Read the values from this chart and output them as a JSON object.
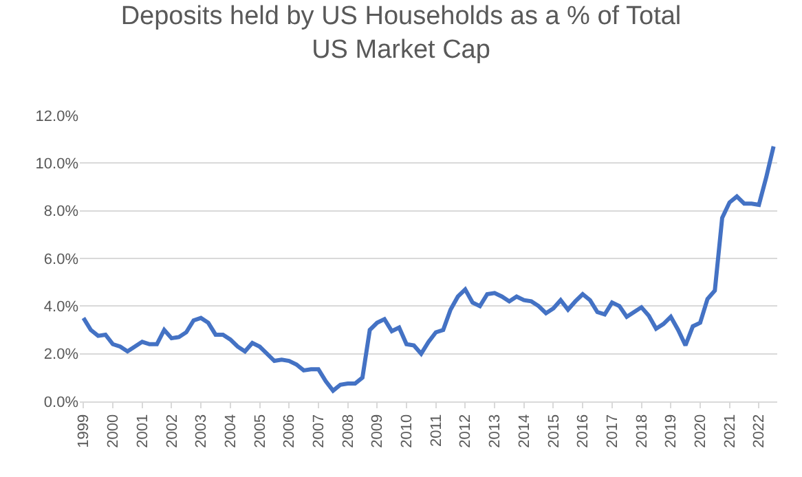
{
  "chart_data": {
    "type": "line",
    "title": "Deposits held by US Households as a % of Total US Market Cap",
    "categories": [
      "1999",
      null,
      null,
      null,
      "2000",
      null,
      null,
      null,
      "2001",
      null,
      null,
      null,
      "2002",
      null,
      null,
      null,
      "2003",
      null,
      null,
      null,
      "2004",
      null,
      null,
      null,
      "2005",
      null,
      null,
      null,
      "2006",
      null,
      null,
      null,
      "2007",
      null,
      null,
      null,
      "2008",
      null,
      null,
      null,
      "2009",
      null,
      null,
      null,
      "2010",
      null,
      null,
      null,
      "2011",
      null,
      null,
      null,
      "2012",
      null,
      null,
      null,
      "2013",
      null,
      null,
      null,
      "2014",
      null,
      null,
      null,
      "2015",
      null,
      null,
      null,
      "2016",
      null,
      null,
      null,
      "2017",
      null,
      null,
      null,
      "2018",
      null,
      null,
      null,
      "2019",
      null,
      null,
      null,
      "2020",
      null,
      null,
      null,
      "2021",
      null,
      null,
      null,
      "2022",
      null,
      null
    ],
    "series": [
      {
        "color": "#4472c4",
        "values": [
          3.5,
          3.0,
          2.75,
          2.8,
          2.4,
          2.3,
          2.1,
          2.3,
          2.5,
          2.4,
          2.4,
          3.0,
          2.65,
          2.7,
          2.9,
          3.4,
          3.5,
          3.3,
          2.8,
          2.8,
          2.6,
          2.3,
          2.1,
          2.45,
          2.3,
          2.0,
          1.7,
          1.75,
          1.7,
          1.55,
          1.3,
          1.35,
          1.35,
          0.85,
          0.45,
          0.7,
          0.75,
          0.75,
          1.0,
          3.0,
          3.3,
          3.45,
          2.95,
          3.1,
          2.4,
          2.35,
          2.0,
          2.5,
          2.9,
          3.0,
          3.85,
          4.4,
          4.7,
          4.15,
          4.0,
          4.5,
          4.55,
          4.4,
          4.2,
          4.4,
          4.25,
          4.2,
          4.0,
          3.7,
          3.9,
          4.25,
          3.85,
          4.2,
          4.5,
          4.25,
          3.75,
          3.65,
          4.15,
          4.0,
          3.55,
          3.75,
          3.95,
          3.6,
          3.05,
          3.25,
          3.55,
          3.0,
          2.35,
          3.15,
          3.3,
          4.3,
          4.65,
          7.7,
          8.35,
          8.6,
          8.3,
          8.3,
          8.25,
          9.4,
          10.7
        ]
      }
    ],
    "ylim": [
      0,
      12
    ],
    "yticks": [
      {
        "value": 0,
        "label": "0.0%"
      },
      {
        "value": 2,
        "label": "2.0%"
      },
      {
        "value": 4,
        "label": "4.0%"
      },
      {
        "value": 6,
        "label": "6.0%"
      },
      {
        "value": 8,
        "label": "8.0%"
      },
      {
        "value": 10,
        "label": "10.0%"
      },
      {
        "value": 12,
        "label": "12.0%"
      }
    ],
    "grid": "y",
    "marker": "none",
    "line_style": "solid"
  }
}
